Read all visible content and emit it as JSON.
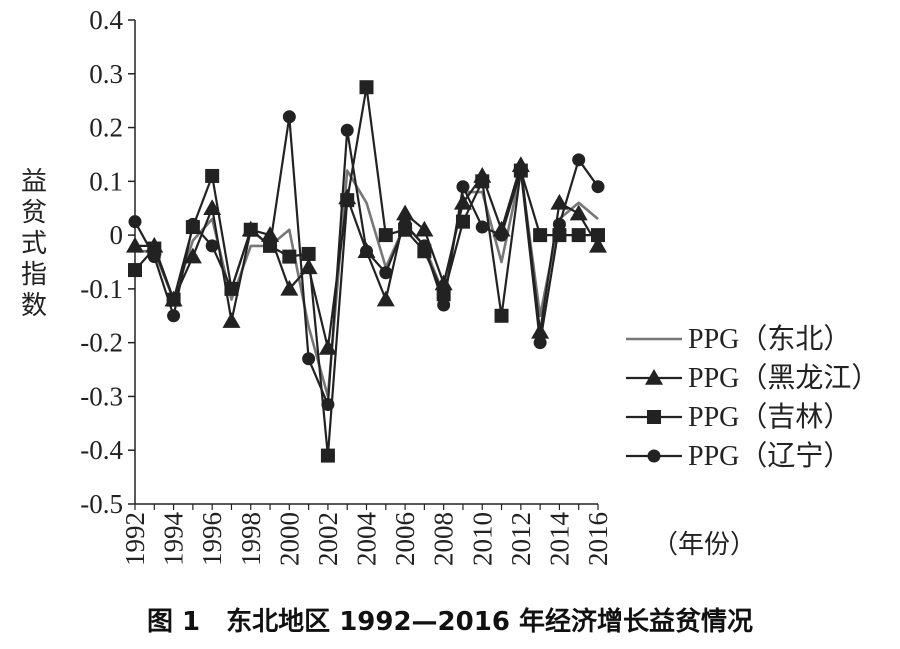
{
  "figure": {
    "caption": "图 1　东北地区 1992—2016 年经济增长益贫情况",
    "x_unit": "（年份）"
  },
  "chart_data": {
    "type": "line",
    "ylabel": "益贫式指数",
    "xlabel": "",
    "ylim": [
      -0.5,
      0.4
    ],
    "yticks": [
      0.4,
      0.3,
      0.2,
      0.1,
      0,
      -0.1,
      -0.2,
      -0.3,
      -0.4,
      -0.5
    ],
    "ytick_labels": [
      "0.4",
      "0.3",
      "0.2",
      "0.1",
      "0",
      "-0.1",
      "-0.2",
      "-0.3",
      "-0.4",
      "-0.5"
    ],
    "xlim": [
      1992,
      2016
    ],
    "xticks": [
      1992,
      1994,
      1996,
      1998,
      2000,
      2002,
      2004,
      2006,
      2008,
      2010,
      2012,
      2014,
      2016
    ],
    "xtick_labels": [
      "1992",
      "1994",
      "1996",
      "1998",
      "2000",
      "2002",
      "2004",
      "2006",
      "2008",
      "2010",
      "2012",
      "2014",
      "2016"
    ],
    "grid": false,
    "legend_position": "right",
    "x": [
      1992,
      1993,
      1994,
      1995,
      1996,
      1997,
      1998,
      1999,
      2000,
      2001,
      2002,
      2003,
      2004,
      2005,
      2006,
      2007,
      2008,
      2009,
      2010,
      2011,
      2012,
      2013,
      2014,
      2015,
      2016
    ],
    "series": [
      {
        "name": "PPG（东北）",
        "marker": "none",
        "color": "#777777",
        "values": [
          -0.03,
          -0.03,
          -0.12,
          -0.01,
          0.03,
          -0.12,
          -0.02,
          -0.02,
          0.01,
          -0.17,
          -0.3,
          0.12,
          0.06,
          -0.06,
          0.02,
          -0.02,
          -0.11,
          0.08,
          0.08,
          -0.05,
          0.12,
          -0.15,
          0.03,
          0.06,
          0.03
        ]
      },
      {
        "name": "PPG（黑龙江）",
        "marker": "triangle",
        "color": "#222222",
        "values": [
          -0.02,
          -0.02,
          -0.12,
          -0.04,
          0.05,
          -0.16,
          0.01,
          0.0,
          -0.1,
          -0.06,
          -0.21,
          0.07,
          -0.03,
          -0.12,
          0.04,
          0.01,
          -0.09,
          0.06,
          0.11,
          0.01,
          0.13,
          -0.18,
          0.06,
          0.04,
          -0.02
        ]
      },
      {
        "name": "PPG（吉林）",
        "marker": "square",
        "color": "#222222",
        "values": [
          -0.065,
          -0.025,
          -0.12,
          0.015,
          0.11,
          -0.1,
          0.01,
          -0.02,
          -0.04,
          -0.035,
          -0.41,
          0.065,
          0.275,
          0.0,
          0.01,
          -0.03,
          -0.11,
          0.025,
          0.1,
          -0.15,
          0.12,
          0.0,
          0.0,
          0.0,
          0.0
        ]
      },
      {
        "name": "PPG（辽宁）",
        "marker": "circle",
        "color": "#222222",
        "values": [
          0.025,
          -0.04,
          -0.15,
          0.02,
          -0.02,
          -0.1,
          0.01,
          -0.02,
          0.22,
          -0.23,
          -0.315,
          0.195,
          -0.03,
          -0.07,
          0.02,
          -0.02,
          -0.13,
          0.09,
          0.015,
          0.0,
          0.12,
          -0.2,
          0.02,
          0.14,
          0.09
        ]
      }
    ]
  }
}
